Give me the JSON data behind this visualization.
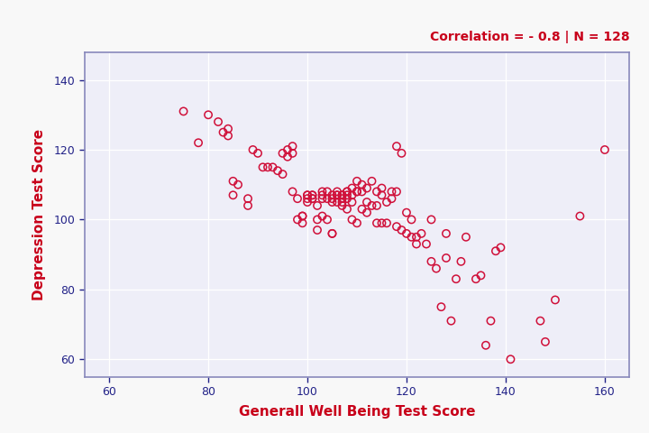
{
  "annotation": "Correlation = - 0.8 | N = 128",
  "xlabel": "Generall Well Being Test Score",
  "ylabel": "Depression Test Score",
  "xlim": [
    55,
    165
  ],
  "ylim": [
    55,
    148
  ],
  "xticks": [
    60,
    80,
    100,
    120,
    140,
    160
  ],
  "yticks": [
    60,
    80,
    100,
    120,
    140
  ],
  "marker_color": "#D0103A",
  "marker_facecolor": "none",
  "marker_size": 6,
  "marker_linewidth": 1.1,
  "label_color_x": "#C8001A",
  "label_color_y": "#C8001A",
  "annotation_color": "#C8001A",
  "plot_bg_color": "#EEEEF8",
  "outer_bg_color": "#F8F8F8",
  "grid_color": "#FFFFFF",
  "spine_color": "#8888BB",
  "tick_color": "#222288",
  "tick_label_color": "#222288",
  "x": [
    75,
    78,
    80,
    82,
    83,
    84,
    84,
    85,
    85,
    86,
    88,
    88,
    89,
    90,
    91,
    92,
    93,
    94,
    95,
    95,
    96,
    96,
    97,
    97,
    97,
    98,
    98,
    99,
    99,
    99,
    100,
    100,
    100,
    100,
    101,
    101,
    101,
    101,
    102,
    102,
    102,
    103,
    103,
    103,
    103,
    104,
    104,
    104,
    105,
    105,
    105,
    105,
    105,
    106,
    106,
    106,
    106,
    107,
    107,
    107,
    107,
    107,
    108,
    108,
    108,
    108,
    108,
    109,
    109,
    109,
    109,
    110,
    110,
    110,
    110,
    111,
    111,
    111,
    112,
    112,
    112,
    113,
    113,
    114,
    114,
    114,
    115,
    115,
    115,
    116,
    116,
    117,
    117,
    118,
    118,
    118,
    119,
    119,
    120,
    120,
    121,
    121,
    122,
    122,
    123,
    124,
    125,
    125,
    126,
    127,
    128,
    128,
    129,
    130,
    131,
    132,
    134,
    135,
    136,
    137,
    138,
    139,
    141,
    147,
    148,
    150,
    155,
    160
  ],
  "y": [
    131,
    122,
    130,
    128,
    125,
    126,
    124,
    111,
    107,
    110,
    106,
    104,
    120,
    119,
    115,
    115,
    115,
    114,
    113,
    119,
    120,
    118,
    121,
    119,
    108,
    106,
    100,
    101,
    101,
    99,
    105,
    107,
    107,
    106,
    107,
    107,
    106,
    106,
    104,
    100,
    97,
    108,
    107,
    106,
    101,
    108,
    106,
    100,
    106,
    107,
    105,
    96,
    96,
    108,
    107,
    107,
    105,
    107,
    107,
    106,
    105,
    104,
    108,
    108,
    107,
    106,
    103,
    109,
    107,
    105,
    100,
    111,
    108,
    108,
    99,
    110,
    108,
    103,
    109,
    105,
    102,
    111,
    104,
    108,
    104,
    99,
    109,
    107,
    99,
    105,
    99,
    108,
    106,
    121,
    108,
    98,
    119,
    97,
    102,
    96,
    100,
    95,
    95,
    93,
    96,
    93,
    100,
    88,
    86,
    75,
    96,
    89,
    71,
    83,
    88,
    95,
    83,
    84,
    64,
    71,
    91,
    92,
    60,
    71,
    65,
    77,
    101,
    120
  ]
}
